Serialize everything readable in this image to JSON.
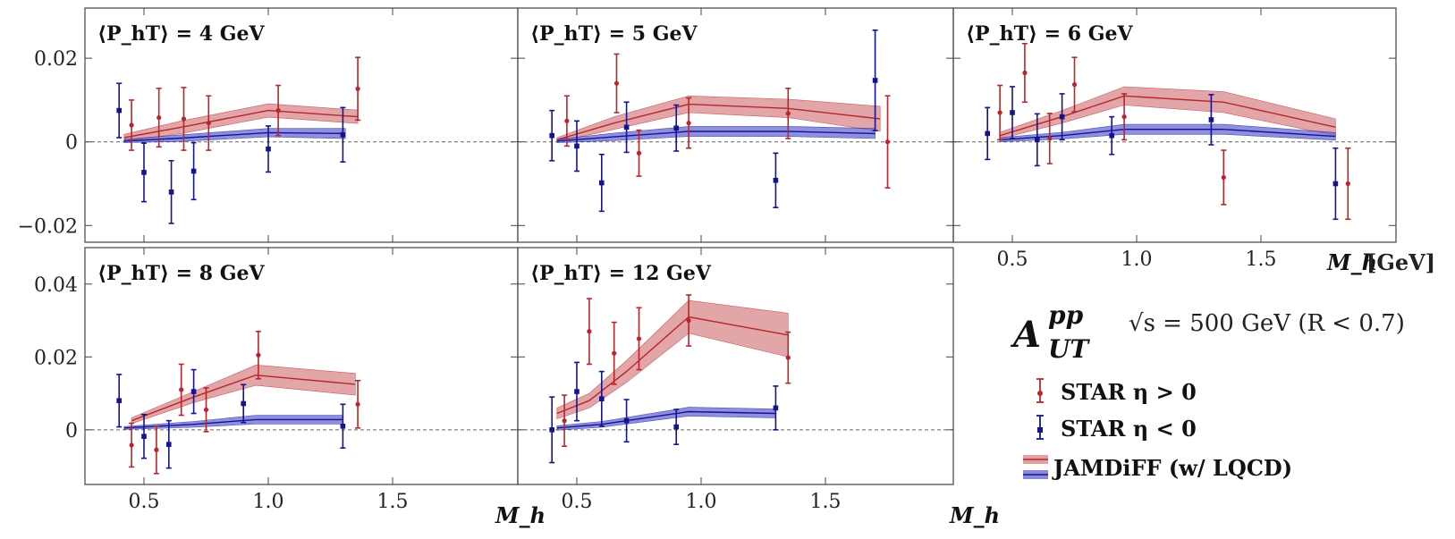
{
  "colors": {
    "red": "#b8262b",
    "red_band": "#d9888b",
    "blue": "#14148f",
    "blue_band": "#6a6ad6"
  },
  "figure": {
    "observable_main": "A",
    "observable_sup": "pp",
    "observable_sub": "UT",
    "energy_text": "√s = 500 GeV (R < 0.7)",
    "x_axis_label": "M_h",
    "x_axis_unit": "[GeV]",
    "legend": [
      {
        "label": "STAR η > 0",
        "kind": "red-marker"
      },
      {
        "label": "STAR η < 0",
        "kind": "blue-marker"
      },
      {
        "label": "JAMDiFF (w/ LQCD)",
        "kind": "bands"
      }
    ]
  },
  "chart_data": [
    {
      "type": "scatter",
      "title": "⟨P_hT⟩ = 4 GeV",
      "xlim": [
        0.2,
        1.8
      ],
      "ylim": [
        -0.024,
        0.032
      ],
      "yticks": [
        "0.02",
        "0",
        "−0.02"
      ],
      "ytick_values": [
        0.02,
        0,
        -0.02
      ],
      "xticks": [],
      "xtick_values": [],
      "series": [
        {
          "name": "STAR η > 0",
          "color": "red",
          "x": [
            0.45,
            0.56,
            0.66,
            0.76,
            1.04,
            1.36
          ],
          "y": [
            0.004,
            0.0058,
            0.0055,
            0.0045,
            0.0075,
            0.0127
          ],
          "err": [
            0.006,
            0.007,
            0.0075,
            0.0065,
            0.006,
            0.0075
          ]
        },
        {
          "name": "STAR η < 0",
          "color": "blue",
          "x": [
            0.4,
            0.5,
            0.61,
            0.7,
            1.0,
            1.3
          ],
          "y": [
            0.0075,
            -0.0073,
            -0.012,
            -0.007,
            -0.0017,
            0.0017
          ],
          "err": [
            0.0065,
            0.007,
            0.0075,
            0.0068,
            0.0055,
            0.0065
          ]
        }
      ],
      "bands": [
        {
          "color": "red",
          "x": [
            0.42,
            0.65,
            1.0,
            1.36
          ],
          "y": [
            0.001,
            0.0035,
            0.0075,
            0.006
          ],
          "half_width": [
            0.0008,
            0.0015,
            0.0016,
            0.0016
          ]
        },
        {
          "color": "blue",
          "x": [
            0.42,
            0.65,
            1.0,
            1.31
          ],
          "y": [
            0.0002,
            0.0009,
            0.0022,
            0.002
          ],
          "half_width": [
            0.0004,
            0.0008,
            0.001,
            0.0012
          ]
        }
      ]
    },
    {
      "type": "scatter",
      "title": "⟨P_hT⟩ = 5 GeV",
      "xlim": [
        0.2,
        1.8
      ],
      "ylim": [
        -0.024,
        0.032
      ],
      "yticks": [],
      "ytick_values": [],
      "xticks": [],
      "xtick_values": [],
      "series": [
        {
          "name": "STAR η > 0",
          "color": "red",
          "x": [
            0.46,
            0.66,
            0.75,
            0.95,
            1.35,
            1.75
          ],
          "y": [
            0.005,
            0.014,
            -0.0027,
            0.0045,
            0.0068,
            0.0
          ],
          "err": [
            0.006,
            0.007,
            0.0055,
            0.006,
            0.006,
            0.011
          ]
        },
        {
          "name": "STAR η < 0",
          "color": "blue",
          "x": [
            0.4,
            0.5,
            0.6,
            0.7,
            0.9,
            1.3,
            1.7
          ],
          "y": [
            0.0015,
            -0.001,
            -0.0098,
            0.0035,
            0.0033,
            -0.0092,
            0.0147
          ],
          "err": [
            0.006,
            0.006,
            0.0068,
            0.006,
            0.0055,
            0.0065,
            0.012
          ]
        }
      ],
      "bands": [
        {
          "color": "red",
          "x": [
            0.42,
            0.65,
            0.95,
            1.35,
            1.72
          ],
          "y": [
            0.0005,
            0.0045,
            0.009,
            0.008,
            0.0055
          ],
          "half_width": [
            0.0005,
            0.0015,
            0.002,
            0.0022,
            0.003
          ]
        },
        {
          "color": "blue",
          "x": [
            0.42,
            0.65,
            0.95,
            1.35,
            1.7
          ],
          "y": [
            0.0002,
            0.0012,
            0.0025,
            0.0025,
            0.002
          ],
          "half_width": [
            0.0004,
            0.0009,
            0.0012,
            0.0012,
            0.0012
          ]
        }
      ]
    },
    {
      "type": "scatter",
      "title": "⟨P_hT⟩ = 6 GeV",
      "xlim": [
        0.2,
        1.8
      ],
      "ylim": [
        -0.024,
        0.032
      ],
      "yticks": [],
      "ytick_values": [],
      "xticks": [
        "0.5",
        "1.0",
        "1.5"
      ],
      "xtick_values": [
        0.5,
        1.0,
        1.5
      ],
      "series": [
        {
          "name": "STAR η > 0",
          "color": "red",
          "x": [
            0.45,
            0.55,
            0.65,
            0.75,
            0.95,
            1.35,
            1.85
          ],
          "y": [
            0.007,
            0.0165,
            0.0008,
            0.0137,
            0.006,
            -0.0085,
            -0.01
          ],
          "err": [
            0.0065,
            0.007,
            0.006,
            0.0065,
            0.0055,
            0.0065,
            0.0085
          ]
        },
        {
          "name": "STAR η < 0",
          "color": "blue",
          "x": [
            0.4,
            0.5,
            0.6,
            0.7,
            0.9,
            1.3,
            1.8
          ],
          "y": [
            0.002,
            0.007,
            0.0005,
            0.006,
            0.0015,
            0.0053,
            -0.01
          ],
          "err": [
            0.0062,
            0.0062,
            0.0062,
            0.0055,
            0.0045,
            0.006,
            0.0085
          ]
        }
      ],
      "bands": [
        {
          "color": "red",
          "x": [
            0.45,
            0.7,
            0.95,
            1.35,
            1.8
          ],
          "y": [
            0.0015,
            0.006,
            0.011,
            0.0095,
            0.0035
          ],
          "half_width": [
            0.0008,
            0.0015,
            0.0022,
            0.0025,
            0.002
          ]
        },
        {
          "color": "blue",
          "x": [
            0.45,
            0.7,
            0.95,
            1.35,
            1.8
          ],
          "y": [
            0.0005,
            0.0015,
            0.003,
            0.003,
            0.0013
          ],
          "half_width": [
            0.0005,
            0.0008,
            0.0012,
            0.0012,
            0.0009
          ]
        }
      ]
    },
    {
      "type": "scatter",
      "title": "⟨P_hT⟩ = 8 GeV",
      "xlim": [
        0.2,
        1.8
      ],
      "ylim": [
        -0.015,
        0.05
      ],
      "yticks": [
        "0.04",
        "0.02",
        "0"
      ],
      "ytick_values": [
        0.04,
        0.02,
        0
      ],
      "xticks": [
        "0.5",
        "1.0",
        "1.5"
      ],
      "xtick_values": [
        0.5,
        1.0,
        1.5
      ],
      "series": [
        {
          "name": "STAR η > 0",
          "color": "red",
          "x": [
            0.45,
            0.55,
            0.65,
            0.75,
            0.96,
            1.36
          ],
          "y": [
            -0.0042,
            -0.0055,
            0.011,
            0.0055,
            0.0205,
            0.007
          ],
          "err": [
            0.006,
            0.0065,
            0.007,
            0.006,
            0.0065,
            0.0065
          ]
        },
        {
          "name": "STAR η < 0",
          "color": "blue",
          "x": [
            0.4,
            0.5,
            0.6,
            0.7,
            0.9,
            1.3
          ],
          "y": [
            0.008,
            -0.0018,
            -0.004,
            0.0105,
            0.0072,
            0.001
          ],
          "err": [
            0.0072,
            0.006,
            0.0065,
            0.006,
            0.0052,
            0.006
          ]
        }
      ],
      "bands": [
        {
          "color": "red",
          "x": [
            0.45,
            0.7,
            0.95,
            1.35
          ],
          "y": [
            0.0025,
            0.009,
            0.015,
            0.0125
          ],
          "half_width": [
            0.0008,
            0.0015,
            0.0028,
            0.003
          ]
        },
        {
          "color": "blue",
          "x": [
            0.42,
            0.7,
            0.95,
            1.3
          ],
          "y": [
            0.0005,
            0.0015,
            0.0028,
            0.0028
          ],
          "half_width": [
            0.0004,
            0.0008,
            0.0012,
            0.0012
          ]
        }
      ]
    },
    {
      "type": "scatter",
      "title": "⟨P_hT⟩ = 12 GeV",
      "xlim": [
        0.2,
        1.8
      ],
      "ylim": [
        -0.015,
        0.05
      ],
      "yticks": [],
      "ytick_values": [],
      "xticks": [
        "0.5",
        "1.0",
        "1.5"
      ],
      "xtick_values": [
        0.5,
        1.0,
        1.5
      ],
      "series": [
        {
          "name": "STAR η > 0",
          "color": "red",
          "x": [
            0.45,
            0.55,
            0.65,
            0.75,
            0.95,
            1.35
          ],
          "y": [
            0.0025,
            0.027,
            0.021,
            0.025,
            0.03,
            0.0198
          ],
          "err": [
            0.007,
            0.009,
            0.0085,
            0.0085,
            0.007,
            0.007
          ]
        },
        {
          "name": "STAR η < 0",
          "color": "blue",
          "x": [
            0.4,
            0.5,
            0.6,
            0.7,
            0.9,
            1.3
          ],
          "y": [
            0.0,
            0.0105,
            0.0085,
            0.0025,
            0.0008,
            0.006
          ],
          "err": [
            0.009,
            0.008,
            0.0075,
            0.0058,
            0.0048,
            0.006
          ]
        }
      ],
      "bands": [
        {
          "color": "red",
          "x": [
            0.42,
            0.55,
            0.7,
            0.95,
            1.35
          ],
          "y": [
            0.0045,
            0.008,
            0.016,
            0.031,
            0.026
          ],
          "half_width": [
            0.0015,
            0.002,
            0.003,
            0.0045,
            0.006
          ]
        },
        {
          "color": "blue",
          "x": [
            0.42,
            0.6,
            0.95,
            1.3
          ],
          "y": [
            0.0005,
            0.0015,
            0.005,
            0.0045
          ],
          "half_width": [
            0.0006,
            0.0008,
            0.0012,
            0.0012
          ]
        }
      ]
    }
  ]
}
